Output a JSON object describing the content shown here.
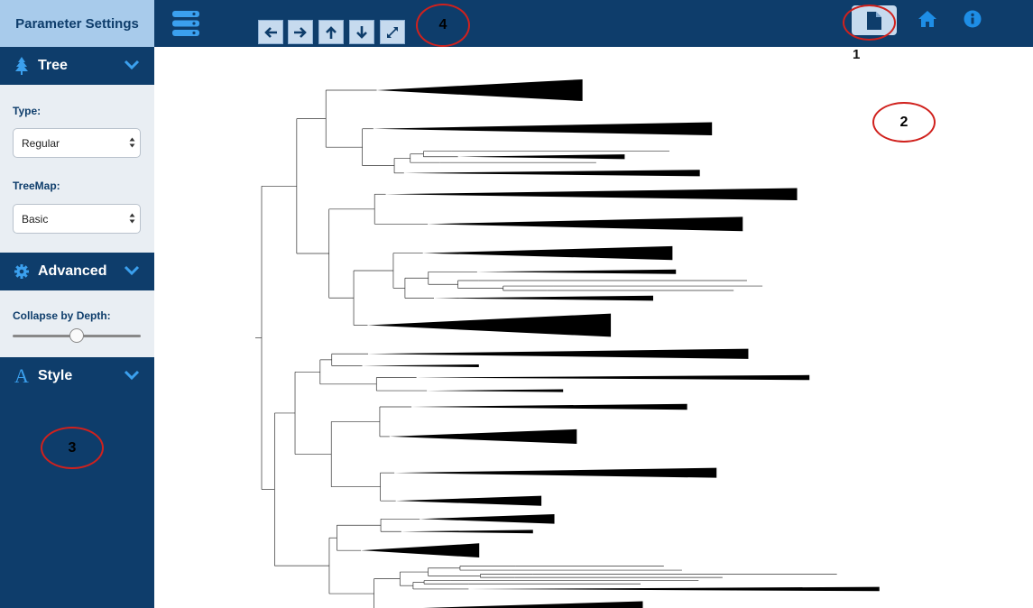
{
  "sidebar": {
    "title": "Parameter Settings",
    "tree_section": {
      "label": "Tree",
      "icon": "tree-icon"
    },
    "type_field": {
      "label": "Type:",
      "value": "Regular"
    },
    "treemap_field": {
      "label": "TreeMap:",
      "value": "Basic"
    },
    "advanced_section": {
      "label": "Advanced",
      "icon": "gear-icon"
    },
    "collapse_field": {
      "label": "Collapse by Depth:",
      "slider_value": 0.5
    },
    "style_section": {
      "label": "Style",
      "icon": "font-a-icon"
    }
  },
  "toolbar": {
    "menu_icon": "server-stack-icon",
    "nav_buttons": [
      "arrow-left-icon",
      "arrow-right-icon",
      "arrow-up-icon",
      "arrow-down-icon",
      "expand-icon"
    ],
    "right_icons": [
      "file-icon",
      "home-icon",
      "info-icon"
    ]
  },
  "annotations": {
    "one": "1",
    "two": "2",
    "three": "3",
    "four": "4"
  },
  "colors": {
    "navy": "#0e3d6b",
    "light_blue": "#a8cbeb",
    "accent": "#1e8ee6",
    "annotation_red": "#d0211d"
  }
}
